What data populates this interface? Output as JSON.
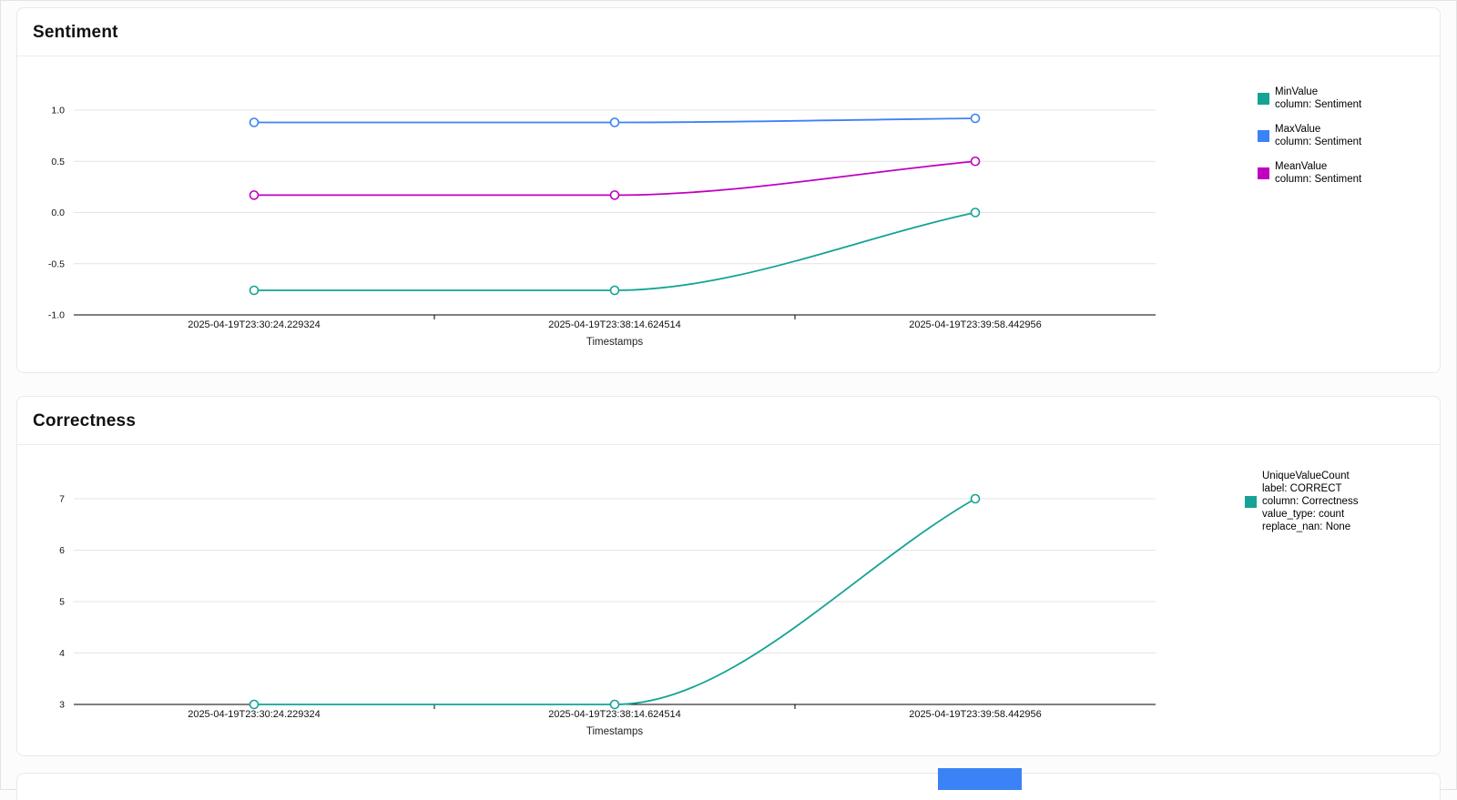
{
  "page": {
    "background": "#fcfcfc",
    "card_background": "#ffffff",
    "card_border": "#e9e9e9"
  },
  "chart_data": [
    {
      "type": "line",
      "title": "Sentiment",
      "xlabel": "Timestamps",
      "categories": [
        "2025-04-19T23:30:24.229324",
        "2025-04-19T23:38:14.624514",
        "2025-04-19T23:39:58.442956"
      ],
      "ylim": [
        -1.0,
        1.0
      ],
      "yticks": [
        1.0,
        0.5,
        0.0,
        -0.5,
        -1.0
      ],
      "ytick_labels": [
        "1.0",
        "0.5",
        "0.0",
        "-0.5",
        "-1.0"
      ],
      "grid": true,
      "legend_position": "right",
      "series": [
        {
          "name": "MinValue",
          "color": "#14a394",
          "values": [
            -0.76,
            -0.76,
            0.0
          ],
          "legend_lines": [
            "MinValue",
            "column: Sentiment"
          ]
        },
        {
          "name": "MaxValue",
          "color": "#3b82f6",
          "values": [
            0.88,
            0.88,
            0.92
          ],
          "legend_lines": [
            "MaxValue",
            "column: Sentiment"
          ]
        },
        {
          "name": "MeanValue",
          "color": "#c000c0",
          "values": [
            0.17,
            0.17,
            0.5
          ],
          "legend_lines": [
            "MeanValue",
            "column: Sentiment"
          ]
        }
      ]
    },
    {
      "type": "line",
      "title": "Correctness",
      "xlabel": "Timestamps",
      "categories": [
        "2025-04-19T23:30:24.229324",
        "2025-04-19T23:38:14.624514",
        "2025-04-19T23:39:58.442956"
      ],
      "ylim": [
        3,
        7
      ],
      "yticks": [
        7,
        6,
        5,
        4,
        3
      ],
      "ytick_labels": [
        "7",
        "6",
        "5",
        "4",
        "3"
      ],
      "grid": true,
      "legend_position": "right",
      "series": [
        {
          "name": "UniqueValueCount",
          "color": "#14a394",
          "values": [
            3,
            3,
            7
          ],
          "legend_lines": [
            "UniqueValueCount",
            "label: CORRECT",
            "column: Correctness",
            "value_type: count",
            "replace_nan: None"
          ]
        }
      ]
    }
  ],
  "partial_bottom_element": {
    "color": "#3b82f6"
  }
}
